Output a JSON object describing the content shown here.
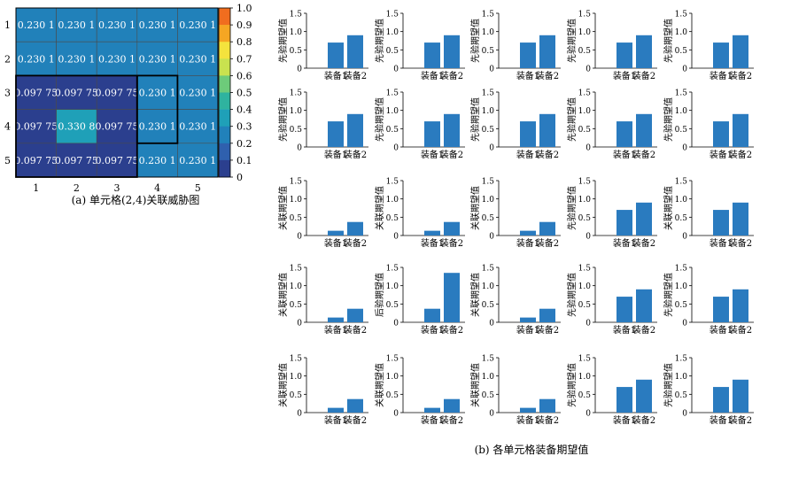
{
  "captions": {
    "left": "(a) 单元格(2,4)关联威胁图",
    "right": "(b) 各单元格装备期望值"
  },
  "colors": {
    "bar": "#2a7bbf",
    "cell_text": "#ffffff",
    "grid_line": "#4a4a4a",
    "axis": "#000000"
  },
  "colorbar": {
    "ticks": [
      "1.0",
      "0.9",
      "0.8",
      "0.7",
      "0.6",
      "0.5",
      "0.4",
      "0.3",
      "0.2",
      "0.1",
      "0"
    ],
    "stops": [
      "#f06d1f",
      "#f5a623",
      "#f4e33d",
      "#c9e24f",
      "#6dcb7a",
      "#2fb39f",
      "#1fa0b8",
      "#2181ba",
      "#2f60ae",
      "#2b3f8e"
    ]
  },
  "chart_data": [
    {
      "type": "heatmap",
      "title": "(a) 单元格(2,4)关联威胁图",
      "x_ticks": [
        "1",
        "2",
        "3",
        "4",
        "5"
      ],
      "y_ticks": [
        "1",
        "2",
        "3",
        "4",
        "5"
      ],
      "cell_labels": [
        [
          "0.230 1",
          "0.230 1",
          "0.230 1",
          "0.230 1",
          "0.230 1"
        ],
        [
          "0.230 1",
          "0.230 1",
          "0.230 1",
          "0.230 1",
          "0.230 1"
        ],
        [
          "0.097 75",
          "0.097 75",
          "0.097 75",
          "0.230 1",
          "0.230 1"
        ],
        [
          "0.097 75",
          "0.330 8",
          "0.097 75",
          "0.230 1",
          "0.230 1"
        ],
        [
          "0.097 75",
          "0.097 75",
          "0.097 75",
          "0.230 1",
          "0.230 1"
        ]
      ],
      "values": [
        [
          0.2301,
          0.2301,
          0.2301,
          0.2301,
          0.2301
        ],
        [
          0.2301,
          0.2301,
          0.2301,
          0.2301,
          0.2301
        ],
        [
          0.09775,
          0.09775,
          0.09775,
          0.2301,
          0.2301
        ],
        [
          0.09775,
          0.3308,
          0.09775,
          0.2301,
          0.2301
        ],
        [
          0.09775,
          0.09775,
          0.09775,
          0.2301,
          0.2301
        ]
      ],
      "zlim": [
        0,
        1
      ]
    },
    {
      "type": "bar",
      "title": "(b) 各单元格装备期望值",
      "categories": [
        "装备1",
        "装备2"
      ],
      "yticks": [
        "0",
        "0.5",
        "1.0",
        "1.5"
      ],
      "ylim": [
        0,
        1.5
      ],
      "grid_rows": 5,
      "grid_cols": 5,
      "panels": [
        {
          "ylabel": "先验期望值",
          "values": [
            0.7,
            0.9
          ]
        },
        {
          "ylabel": "先验期望值",
          "values": [
            0.7,
            0.9
          ]
        },
        {
          "ylabel": "先验期望值",
          "values": [
            0.7,
            0.9
          ]
        },
        {
          "ylabel": "先验期望值",
          "values": [
            0.7,
            0.9
          ]
        },
        {
          "ylabel": "先验期望值",
          "values": [
            0.7,
            0.9
          ]
        },
        {
          "ylabel": "先验期望值",
          "values": [
            0.7,
            0.9
          ]
        },
        {
          "ylabel": "先验期望值",
          "values": [
            0.7,
            0.9
          ]
        },
        {
          "ylabel": "先验期望值",
          "values": [
            0.7,
            0.9
          ]
        },
        {
          "ylabel": "先验期望值",
          "values": [
            0.7,
            0.9
          ]
        },
        {
          "ylabel": "先验期望值",
          "values": [
            0.7,
            0.9
          ]
        },
        {
          "ylabel": "关联期望值",
          "values": [
            0.13,
            0.37
          ]
        },
        {
          "ylabel": "关联期望值",
          "values": [
            0.13,
            0.37
          ]
        },
        {
          "ylabel": "关联期望值",
          "values": [
            0.13,
            0.37
          ]
        },
        {
          "ylabel": "先验期望值",
          "values": [
            0.7,
            0.9
          ]
        },
        {
          "ylabel": "关联期望值",
          "values": [
            0.7,
            0.9
          ]
        },
        {
          "ylabel": "关联期望值",
          "values": [
            0.13,
            0.37
          ]
        },
        {
          "ylabel": "后验期望值",
          "values": [
            0.37,
            1.35
          ]
        },
        {
          "ylabel": "关联期望值",
          "values": [
            0.13,
            0.37
          ]
        },
        {
          "ylabel": "先验期望值",
          "values": [
            0.7,
            0.9
          ]
        },
        {
          "ylabel": "先验期望值",
          "values": [
            0.7,
            0.9
          ]
        },
        {
          "ylabel": "关联期望值",
          "values": [
            0.13,
            0.37
          ]
        },
        {
          "ylabel": "关联期望值",
          "values": [
            0.13,
            0.37
          ]
        },
        {
          "ylabel": "关联期望值",
          "values": [
            0.13,
            0.37
          ]
        },
        {
          "ylabel": "先验期望值",
          "values": [
            0.7,
            0.9
          ]
        },
        {
          "ylabel": "先验期望值",
          "values": [
            0.7,
            0.9
          ]
        }
      ]
    }
  ]
}
